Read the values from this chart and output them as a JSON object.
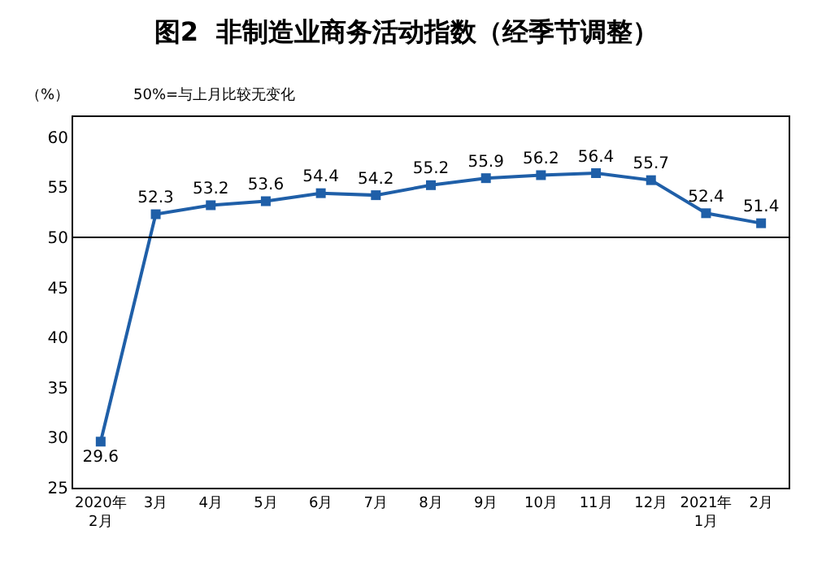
{
  "chart_data": {
    "type": "line",
    "title": "图2  非制造业商务活动指数（经季节调整）",
    "annotations": [
      "（%）",
      "50%=与上月比较无变化"
    ],
    "categories": [
      "2020年\n2月",
      "3月",
      "4月",
      "5月",
      "6月",
      "7月",
      "8月",
      "9月",
      "10月",
      "11月",
      "12月",
      "2021年\n1月",
      "2月"
    ],
    "series": [
      {
        "color": "#1f5fa8",
        "values": [
          29.6,
          52.3,
          53.2,
          53.6,
          54.4,
          54.2,
          55.2,
          55.9,
          56.2,
          56.4,
          55.7,
          52.4,
          51.4
        ]
      }
    ],
    "ylim": [
      25,
      62
    ],
    "yticks": [
      25,
      30,
      35,
      40,
      45,
      50,
      55,
      60
    ],
    "ref_lines": [
      {
        "axis": "y",
        "value": 50,
        "color": "#000000"
      }
    ],
    "data_labels": true,
    "marker": "square",
    "line_style": "solid"
  }
}
